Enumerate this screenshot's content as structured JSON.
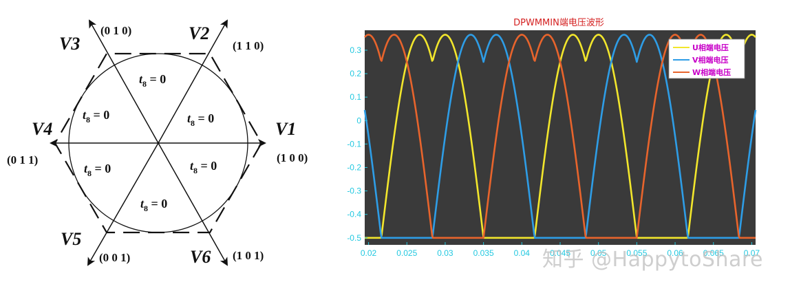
{
  "diagram": {
    "vectors": [
      {
        "name": "V1",
        "code": "(1 0 0)"
      },
      {
        "name": "V2",
        "code": "(1 1 0)"
      },
      {
        "name": "V3",
        "code": "(0 1 0)"
      },
      {
        "name": "V4",
        "code": "(0 1 1)"
      },
      {
        "name": "V5",
        "code": "(0 0 1)"
      },
      {
        "name": "V6",
        "code": "(1 0 1)"
      }
    ],
    "sector_label": {
      "var": "t",
      "sub": "8",
      "rest": " = 0"
    }
  },
  "chart_data": {
    "type": "line",
    "title": "DPWMMIN端电压波形",
    "xlabel": "",
    "ylabel": "",
    "xlim": [
      0.0195,
      0.0705
    ],
    "ylim": [
      -0.53,
      0.385
    ],
    "xticks": [
      "0.02",
      "0.025",
      "0.03",
      "0.035",
      "0.04",
      "0.045",
      "0.05",
      "0.055",
      "0.06",
      "0.065",
      "0.07"
    ],
    "yticks": [
      "0.3",
      "0.2",
      "0.1",
      "0",
      "-0.1",
      "-0.2",
      "-0.3",
      "-0.4",
      "-0.5"
    ],
    "grid": false,
    "legend_position": "top-right",
    "waveform": {
      "amplitude": 0.866,
      "offset": -0.5,
      "period": 0.02,
      "sample_step": 0.0001
    },
    "series": [
      {
        "name": "U相端电压",
        "phase_deg": -60,
        "color": "#f2e62c",
        "legend_color": "#c800c8"
      },
      {
        "name": "V相端电压",
        "phase_deg": -180,
        "color": "#2e9de6",
        "legend_color": "#c800c8"
      },
      {
        "name": "W相端电压",
        "phase_deg": 60,
        "color": "#e8642c",
        "legend_color": "#c800c8"
      }
    ],
    "background": "#3a3a3a",
    "tick_color": "#22c8e0",
    "title_color": "#d42020"
  },
  "watermark": "知乎 @HappytoShare"
}
